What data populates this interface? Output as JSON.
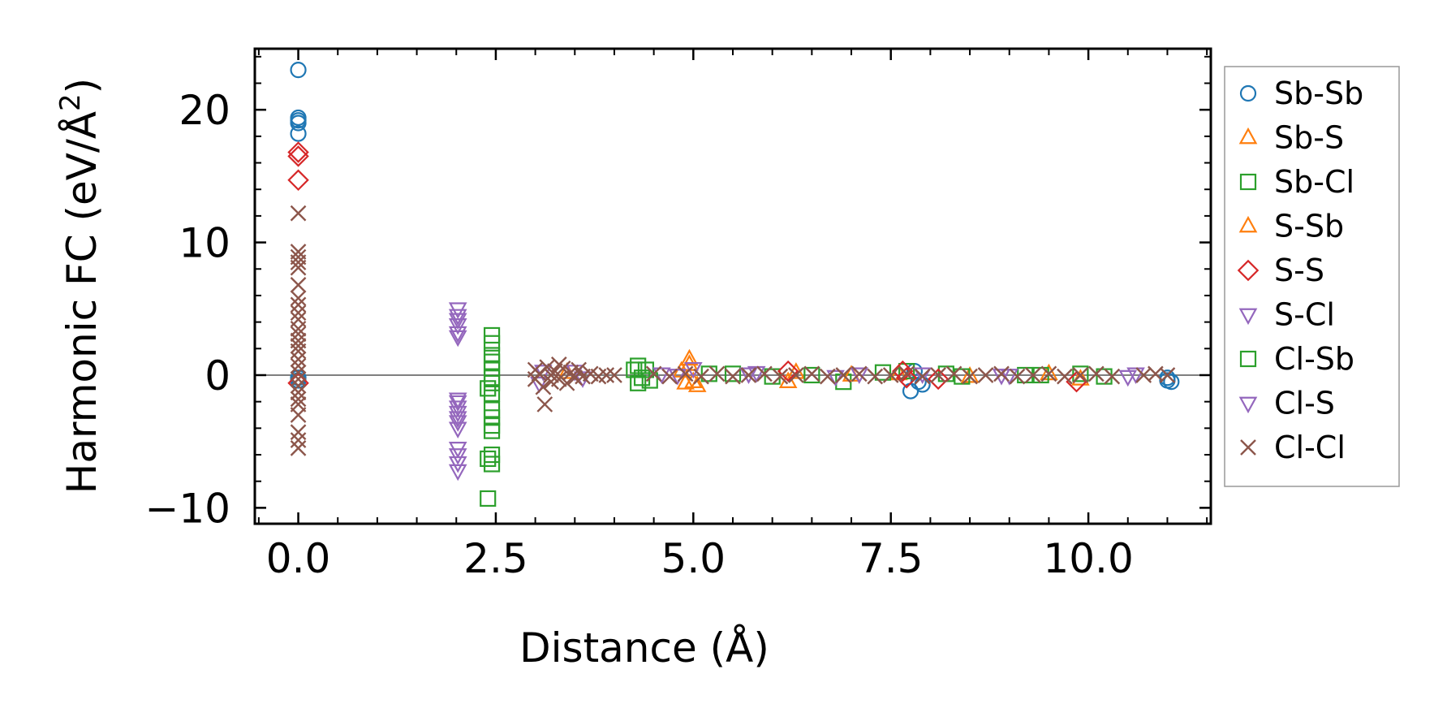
{
  "chart_data": {
    "type": "scatter",
    "title": "",
    "xlabel": "Distance (Å)",
    "ylabel_main": "Harmonic FC (eV/Å",
    "ylabel_sup": "2",
    "ylabel_close": ")",
    "xlim": [
      -0.55,
      11.55
    ],
    "ylim": [
      -11.2,
      24.6
    ],
    "xticks": [
      0.0,
      2.5,
      5.0,
      7.5,
      10.0
    ],
    "xtick_labels": [
      "0.0",
      "2.5",
      "5.0",
      "7.5",
      "10.0"
    ],
    "yticks": [
      -10,
      0,
      10,
      20
    ],
    "ytick_labels": [
      "−10",
      "0",
      "10",
      "20"
    ],
    "zero_line": 0,
    "legend_position": "outside-right",
    "series": [
      {
        "name": "Sb-Sb",
        "marker": "circle",
        "color": "#1f77b4",
        "points": [
          [
            0,
            23.0
          ],
          [
            0,
            19.4
          ],
          [
            0,
            19.2
          ],
          [
            0,
            19.0
          ],
          [
            0,
            18.2
          ],
          [
            0,
            -0.2
          ],
          [
            0,
            -0.4
          ],
          [
            7.75,
            -1.2
          ],
          [
            7.85,
            -0.5
          ],
          [
            7.9,
            -0.7
          ],
          [
            7.8,
            0.3
          ],
          [
            11.0,
            -0.2
          ],
          [
            11.0,
            -0.4
          ],
          [
            11.05,
            -0.5
          ]
        ]
      },
      {
        "name": "Sb-S",
        "marker": "triangle-up",
        "color": "#ff7f0e",
        "points": [
          [
            4.95,
            1.2
          ],
          [
            4.9,
            -0.6
          ],
          [
            5.0,
            -0.5
          ],
          [
            4.85,
            0.3
          ],
          [
            6.2,
            -0.5
          ],
          [
            7.6,
            0.1
          ],
          [
            9.9,
            -0.3
          ],
          [
            3.4,
            0.2
          ]
        ]
      },
      {
        "name": "Sb-Cl",
        "marker": "square",
        "color": "#2ca02c",
        "points": [
          [
            2.45,
            3.0
          ],
          [
            2.45,
            2.4
          ],
          [
            2.45,
            1.5
          ],
          [
            2.45,
            1.0
          ],
          [
            2.45,
            0.5
          ],
          [
            2.45,
            -0.2
          ],
          [
            2.45,
            -0.6
          ],
          [
            2.4,
            -1.0
          ],
          [
            2.45,
            -1.4
          ],
          [
            2.45,
            -2.6
          ],
          [
            2.45,
            -3.2
          ],
          [
            2.45,
            -3.8
          ],
          [
            2.45,
            -4.2
          ],
          [
            2.45,
            -6.0
          ],
          [
            2.4,
            -6.3
          ],
          [
            2.45,
            -6.7
          ],
          [
            2.4,
            -9.3
          ],
          [
            4.3,
            0.7
          ],
          [
            4.3,
            -0.6
          ],
          [
            4.4,
            0.4
          ],
          [
            4.35,
            -0.2
          ],
          [
            5.5,
            0.1
          ],
          [
            6.0,
            -0.1
          ],
          [
            6.9,
            -0.5
          ],
          [
            7.7,
            0.3
          ],
          [
            8.2,
            0.1
          ],
          [
            9.2,
            0.0
          ],
          [
            9.9,
            0.1
          ],
          [
            10.2,
            -0.1
          ]
        ]
      },
      {
        "name": "S-Sb",
        "marker": "triangle-up",
        "color": "#ff7f0e",
        "points": [
          [
            4.95,
            0.8
          ],
          [
            5.05,
            -0.8
          ],
          [
            6.3,
            0.2
          ],
          [
            7.0,
            0.0
          ],
          [
            8.5,
            -0.1
          ],
          [
            9.5,
            0.1
          ]
        ]
      },
      {
        "name": "S-S",
        "marker": "diamond",
        "color": "#d62728",
        "points": [
          [
            0,
            16.8
          ],
          [
            0,
            16.5
          ],
          [
            0,
            14.7
          ],
          [
            0,
            -0.6
          ],
          [
            7.65,
            0.3
          ],
          [
            7.7,
            -0.2
          ],
          [
            6.2,
            0.3
          ],
          [
            8.1,
            -0.3
          ],
          [
            9.85,
            -0.5
          ]
        ]
      },
      {
        "name": "S-Cl",
        "marker": "triangle-down",
        "color": "#9467bd",
        "points": [
          [
            2.02,
            5.0
          ],
          [
            2.02,
            4.5
          ],
          [
            2.02,
            4.2
          ],
          [
            2.02,
            3.8
          ],
          [
            2.02,
            3.2
          ],
          [
            2.02,
            2.9
          ],
          [
            2.02,
            -1.8
          ],
          [
            2.02,
            -2.0
          ],
          [
            2.02,
            -2.4
          ],
          [
            2.02,
            -2.8
          ],
          [
            2.02,
            -3.2
          ],
          [
            2.02,
            -3.5
          ],
          [
            2.02,
            -4.0
          ],
          [
            2.02,
            -5.5
          ],
          [
            2.02,
            -6.0
          ],
          [
            2.02,
            -6.6
          ],
          [
            2.02,
            -7.2
          ],
          [
            3.05,
            -0.6
          ],
          [
            3.5,
            0.3
          ],
          [
            4.6,
            0.1
          ],
          [
            5.0,
            0.5
          ],
          [
            5.8,
            0.2
          ],
          [
            7.1,
            0.1
          ],
          [
            8.9,
            0.0
          ],
          [
            10.5,
            -0.1
          ]
        ]
      },
      {
        "name": "Cl-Sb",
        "marker": "square",
        "color": "#2ca02c",
        "points": [
          [
            4.25,
            0.4
          ],
          [
            4.45,
            -0.4
          ],
          [
            5.2,
            0.1
          ],
          [
            6.5,
            0.0
          ],
          [
            7.4,
            0.2
          ],
          [
            8.4,
            -0.1
          ],
          [
            9.4,
            0.0
          ]
        ]
      },
      {
        "name": "Cl-S",
        "marker": "triangle-down",
        "color": "#9467bd",
        "points": [
          [
            3.1,
            0.3
          ],
          [
            3.6,
            -0.2
          ],
          [
            4.8,
            0.0
          ],
          [
            5.7,
            0.1
          ],
          [
            6.8,
            -0.1
          ],
          [
            7.9,
            0.1
          ],
          [
            9.0,
            0.0
          ],
          [
            10.6,
            0.1
          ]
        ]
      },
      {
        "name": "Cl-Cl",
        "marker": "x",
        "color": "#8c564b",
        "points": [
          [
            0,
            12.2
          ],
          [
            0,
            9.3
          ],
          [
            0,
            8.9
          ],
          [
            0,
            8.5
          ],
          [
            0,
            8.1
          ],
          [
            0,
            6.8
          ],
          [
            0,
            5.8
          ],
          [
            0,
            5.3
          ],
          [
            0,
            4.7
          ],
          [
            0,
            4.2
          ],
          [
            0,
            3.5
          ],
          [
            0,
            3.1
          ],
          [
            0,
            2.6
          ],
          [
            0,
            2.2
          ],
          [
            0,
            1.8
          ],
          [
            0,
            1.2
          ],
          [
            0,
            0.7
          ],
          [
            0,
            0.2
          ],
          [
            0,
            -0.3
          ],
          [
            0,
            -0.8
          ],
          [
            0,
            -1.3
          ],
          [
            0,
            -1.8
          ],
          [
            0,
            -2.2
          ],
          [
            0,
            -3.0
          ],
          [
            0,
            -4.3
          ],
          [
            0,
            -4.9
          ],
          [
            0,
            -5.5
          ],
          [
            3.0,
            0.4
          ],
          [
            3.0,
            -0.3
          ],
          [
            3.05,
            0.1
          ],
          [
            3.1,
            -0.9
          ],
          [
            3.12,
            -2.2
          ],
          [
            3.15,
            0.6
          ],
          [
            3.2,
            0.0
          ],
          [
            3.2,
            -0.5
          ],
          [
            3.25,
            0.3
          ],
          [
            3.3,
            0.8
          ],
          [
            3.3,
            -0.3
          ],
          [
            3.35,
            0.5
          ],
          [
            3.4,
            -0.6
          ],
          [
            3.45,
            0.2
          ],
          [
            3.5,
            -0.2
          ],
          [
            3.55,
            0.4
          ],
          [
            3.6,
            -0.1
          ],
          [
            3.7,
            0.1
          ],
          [
            3.8,
            -0.1
          ],
          [
            3.9,
            0.0
          ],
          [
            4.0,
            0.0
          ],
          [
            4.5,
            0.1
          ],
          [
            4.7,
            -0.1
          ],
          [
            4.9,
            0.1
          ],
          [
            5.1,
            -0.1
          ],
          [
            5.3,
            0.1
          ],
          [
            5.5,
            -0.1
          ],
          [
            5.7,
            0.0
          ],
          [
            5.9,
            0.1
          ],
          [
            6.1,
            -0.1
          ],
          [
            6.3,
            0.0
          ],
          [
            6.5,
            0.1
          ],
          [
            6.7,
            -0.1
          ],
          [
            6.9,
            0.0
          ],
          [
            7.1,
            0.1
          ],
          [
            7.3,
            -0.1
          ],
          [
            7.5,
            0.0
          ],
          [
            7.7,
            0.1
          ],
          [
            7.9,
            -0.1
          ],
          [
            8.1,
            0.0
          ],
          [
            8.3,
            0.1
          ],
          [
            8.5,
            -0.1
          ],
          [
            8.7,
            0.0
          ],
          [
            8.9,
            0.1
          ],
          [
            9.1,
            -0.1
          ],
          [
            9.3,
            0.0
          ],
          [
            9.5,
            0.1
          ],
          [
            9.7,
            -0.1
          ],
          [
            9.9,
            0.0
          ],
          [
            10.1,
            0.1
          ],
          [
            10.3,
            -0.1
          ],
          [
            10.7,
            0.0
          ],
          [
            10.85,
            0.1
          ],
          [
            11.0,
            0.0
          ]
        ]
      }
    ]
  }
}
